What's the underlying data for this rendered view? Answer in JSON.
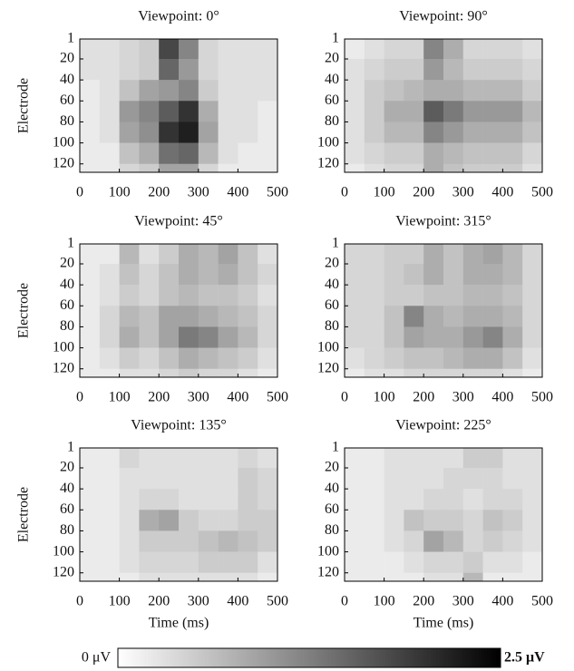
{
  "chart_data": [
    {
      "type": "heatmap",
      "title": "Viewpoint: 0°",
      "ylabel": "Electrode",
      "x": [
        0,
        50,
        100,
        150,
        200,
        250,
        300,
        350,
        400,
        450,
        500
      ],
      "y": [
        1,
        20,
        40,
        60,
        80,
        100,
        120,
        128
      ],
      "xlim": [
        0,
        500
      ],
      "xticks": [
        0,
        100,
        200,
        300,
        400,
        500
      ],
      "ylim": [
        1,
        128
      ],
      "yticks": [
        1,
        20,
        40,
        60,
        80,
        100,
        120
      ],
      "y_reversed": true,
      "values": [
        [
          0.3,
          0.3,
          0.4,
          0.5,
          1.8,
          1.2,
          0.4,
          0.3,
          0.3,
          0.3
        ],
        [
          0.3,
          0.3,
          0.4,
          0.5,
          1.5,
          1.0,
          0.4,
          0.3,
          0.3,
          0.3
        ],
        [
          0.2,
          0.3,
          0.6,
          0.9,
          1.0,
          1.2,
          0.5,
          0.3,
          0.3,
          0.3
        ],
        [
          0.2,
          0.3,
          1.0,
          1.2,
          1.6,
          2.0,
          0.8,
          0.3,
          0.3,
          0.2
        ],
        [
          0.2,
          0.3,
          0.9,
          1.1,
          2.0,
          2.2,
          0.9,
          0.3,
          0.3,
          0.2
        ],
        [
          0.2,
          0.2,
          0.6,
          0.8,
          1.4,
          1.5,
          0.7,
          0.3,
          0.2,
          0.2
        ],
        [
          0.2,
          0.2,
          0.4,
          0.5,
          0.9,
          0.9,
          0.4,
          0.2,
          0.2,
          0.2
        ]
      ]
    },
    {
      "type": "heatmap",
      "title": "Viewpoint: 90°",
      "x": [
        0,
        50,
        100,
        150,
        200,
        250,
        300,
        350,
        400,
        450,
        500
      ],
      "y": [
        1,
        20,
        40,
        60,
        80,
        100,
        120,
        128
      ],
      "xlim": [
        0,
        500
      ],
      "xticks": [
        0,
        100,
        200,
        300,
        400,
        500
      ],
      "ylim": [
        1,
        128
      ],
      "yticks": [
        1,
        20,
        40,
        60,
        80,
        100,
        120
      ],
      "y_reversed": true,
      "values": [
        [
          0.2,
          0.3,
          0.4,
          0.4,
          1.2,
          0.8,
          0.4,
          0.4,
          0.4,
          0.3
        ],
        [
          0.3,
          0.4,
          0.5,
          0.5,
          1.0,
          0.7,
          0.5,
          0.5,
          0.5,
          0.4
        ],
        [
          0.3,
          0.5,
          0.6,
          0.7,
          0.8,
          0.8,
          0.7,
          0.7,
          0.7,
          0.5
        ],
        [
          0.3,
          0.5,
          0.8,
          0.8,
          1.6,
          1.3,
          1.0,
          1.0,
          1.0,
          0.7
        ],
        [
          0.3,
          0.5,
          0.7,
          0.7,
          1.2,
          1.0,
          0.8,
          0.8,
          0.8,
          0.6
        ],
        [
          0.3,
          0.4,
          0.5,
          0.5,
          0.8,
          0.7,
          0.6,
          0.6,
          0.6,
          0.4
        ],
        [
          0.2,
          0.3,
          0.4,
          0.4,
          0.8,
          0.6,
          0.5,
          0.5,
          0.5,
          0.3
        ]
      ]
    },
    {
      "type": "heatmap",
      "title": "Viewpoint: 45°",
      "ylabel": "Electrode",
      "x": [
        0,
        50,
        100,
        150,
        200,
        250,
        300,
        350,
        400,
        450,
        500
      ],
      "y": [
        1,
        20,
        40,
        60,
        80,
        100,
        120,
        128
      ],
      "xlim": [
        0,
        500
      ],
      "xticks": [
        0,
        100,
        200,
        300,
        400,
        500
      ],
      "ylim": [
        1,
        128
      ],
      "yticks": [
        1,
        20,
        40,
        60,
        80,
        100,
        120
      ],
      "y_reversed": true,
      "values": [
        [
          0.2,
          0.2,
          0.7,
          0.3,
          0.5,
          0.8,
          0.7,
          0.9,
          0.6,
          0.3
        ],
        [
          0.2,
          0.3,
          0.6,
          0.4,
          0.6,
          0.8,
          0.7,
          0.8,
          0.6,
          0.4
        ],
        [
          0.2,
          0.3,
          0.5,
          0.4,
          0.6,
          0.7,
          0.6,
          0.6,
          0.5,
          0.3
        ],
        [
          0.2,
          0.4,
          0.7,
          0.6,
          0.9,
          0.9,
          0.8,
          0.7,
          0.6,
          0.4
        ],
        [
          0.2,
          0.4,
          0.8,
          0.6,
          0.9,
          1.3,
          1.2,
          0.9,
          0.7,
          0.4
        ],
        [
          0.2,
          0.3,
          0.5,
          0.4,
          0.6,
          0.8,
          0.7,
          0.6,
          0.5,
          0.3
        ],
        [
          0.2,
          0.2,
          0.3,
          0.3,
          0.4,
          0.5,
          0.4,
          0.4,
          0.3,
          0.2
        ]
      ]
    },
    {
      "type": "heatmap",
      "title": "Viewpoint: 315°",
      "x": [
        0,
        50,
        100,
        150,
        200,
        250,
        300,
        350,
        400,
        450,
        500
      ],
      "y": [
        1,
        20,
        40,
        60,
        80,
        100,
        120,
        128
      ],
      "xlim": [
        0,
        500
      ],
      "xticks": [
        0,
        100,
        200,
        300,
        400,
        500
      ],
      "ylim": [
        1,
        128
      ],
      "yticks": [
        1,
        20,
        40,
        60,
        80,
        100,
        120
      ],
      "y_reversed": true,
      "values": [
        [
          0.4,
          0.4,
          0.5,
          0.5,
          0.8,
          0.6,
          0.8,
          0.9,
          0.7,
          0.4
        ],
        [
          0.4,
          0.4,
          0.5,
          0.6,
          0.8,
          0.6,
          0.8,
          0.8,
          0.7,
          0.4
        ],
        [
          0.4,
          0.4,
          0.5,
          0.5,
          0.6,
          0.6,
          0.7,
          0.7,
          0.6,
          0.4
        ],
        [
          0.4,
          0.4,
          0.6,
          1.2,
          0.8,
          0.7,
          0.8,
          0.8,
          0.7,
          0.4
        ],
        [
          0.4,
          0.4,
          0.6,
          0.9,
          0.8,
          0.8,
          1.0,
          1.2,
          0.8,
          0.4
        ],
        [
          0.3,
          0.4,
          0.5,
          0.6,
          0.6,
          0.7,
          0.8,
          0.8,
          0.6,
          0.3
        ],
        [
          0.2,
          0.3,
          0.3,
          0.4,
          0.4,
          0.4,
          0.4,
          0.4,
          0.3,
          0.2
        ]
      ]
    },
    {
      "type": "heatmap",
      "title": "Viewpoint: 135°",
      "ylabel": "Electrode",
      "xlabel": "Time (ms)",
      "x": [
        0,
        50,
        100,
        150,
        200,
        250,
        300,
        350,
        400,
        450,
        500
      ],
      "y": [
        1,
        20,
        40,
        60,
        80,
        100,
        120,
        128
      ],
      "xlim": [
        0,
        500
      ],
      "xticks": [
        0,
        100,
        200,
        300,
        400,
        500
      ],
      "ylim": [
        1,
        128
      ],
      "yticks": [
        1,
        20,
        40,
        60,
        80,
        100,
        120
      ],
      "y_reversed": true,
      "values": [
        [
          0.2,
          0.2,
          0.4,
          0.3,
          0.3,
          0.3,
          0.3,
          0.3,
          0.4,
          0.3
        ],
        [
          0.2,
          0.2,
          0.3,
          0.3,
          0.3,
          0.3,
          0.3,
          0.3,
          0.5,
          0.4
        ],
        [
          0.2,
          0.2,
          0.3,
          0.4,
          0.4,
          0.3,
          0.3,
          0.3,
          0.5,
          0.4
        ],
        [
          0.2,
          0.2,
          0.3,
          0.8,
          0.9,
          0.5,
          0.4,
          0.4,
          0.5,
          0.5
        ],
        [
          0.2,
          0.2,
          0.3,
          0.5,
          0.5,
          0.5,
          0.6,
          0.7,
          0.6,
          0.5
        ],
        [
          0.2,
          0.2,
          0.3,
          0.4,
          0.4,
          0.4,
          0.5,
          0.5,
          0.5,
          0.3
        ],
        [
          0.2,
          0.2,
          0.2,
          0.3,
          0.3,
          0.3,
          0.3,
          0.3,
          0.3,
          0.2
        ]
      ]
    },
    {
      "type": "heatmap",
      "title": "Viewpoint: 225°",
      "xlabel": "Time (ms)",
      "x": [
        0,
        50,
        100,
        150,
        200,
        250,
        300,
        350,
        400,
        450,
        500
      ],
      "y": [
        1,
        20,
        40,
        60,
        80,
        100,
        120,
        128
      ],
      "xlim": [
        0,
        500
      ],
      "xticks": [
        0,
        100,
        200,
        300,
        400,
        500
      ],
      "ylim": [
        1,
        128
      ],
      "yticks": [
        1,
        20,
        40,
        60,
        80,
        100,
        120
      ],
      "y_reversed": true,
      "values": [
        [
          0.2,
          0.2,
          0.3,
          0.3,
          0.3,
          0.3,
          0.5,
          0.5,
          0.3,
          0.3
        ],
        [
          0.2,
          0.2,
          0.3,
          0.3,
          0.3,
          0.4,
          0.4,
          0.4,
          0.3,
          0.3
        ],
        [
          0.2,
          0.2,
          0.3,
          0.3,
          0.4,
          0.4,
          0.3,
          0.4,
          0.4,
          0.3
        ],
        [
          0.2,
          0.2,
          0.3,
          0.6,
          0.5,
          0.5,
          0.4,
          0.6,
          0.5,
          0.3
        ],
        [
          0.2,
          0.2,
          0.3,
          0.4,
          0.9,
          0.7,
          0.4,
          0.5,
          0.4,
          0.3
        ],
        [
          0.2,
          0.2,
          0.2,
          0.3,
          0.4,
          0.4,
          0.5,
          0.3,
          0.3,
          0.2
        ],
        [
          0.2,
          0.2,
          0.2,
          0.2,
          0.3,
          0.3,
          0.7,
          0.2,
          0.2,
          0.2
        ]
      ]
    }
  ],
  "colorbar": {
    "range": [
      0,
      2.5
    ],
    "min_label": "0 μV",
    "max_label": "2.5 μV",
    "colors": [
      "#ffffff",
      "#000000"
    ]
  }
}
